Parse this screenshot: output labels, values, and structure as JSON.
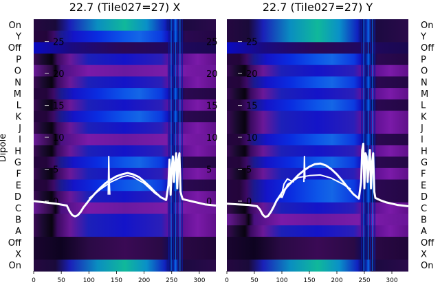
{
  "chart_data": [
    {
      "type": "heatmap",
      "title": "22.7 (Tile027=27) X",
      "ylabel": "Dipole",
      "row_labels": [
        "On",
        "Y",
        "Off",
        "P",
        "O",
        "N",
        "M",
        "L",
        "K",
        "J",
        "I",
        "H",
        "G",
        "F",
        "E",
        "D",
        "C",
        "B",
        "A",
        "Off",
        "X",
        "On"
      ],
      "x_ticks": [
        0,
        50,
        100,
        150,
        200,
        250,
        300
      ],
      "xlim": [
        0,
        330
      ],
      "overlay_ticks": [
        25,
        20,
        15,
        10,
        5,
        0
      ],
      "overlay_ylim": [
        -3,
        27
      ],
      "overlay_series": [
        {
          "x": [
            0,
            20,
            40,
            60,
            65,
            70,
            75,
            80,
            85,
            90,
            100,
            110,
            120,
            130,
            140,
            150,
            160,
            170,
            180,
            190,
            200,
            210,
            220,
            230,
            240,
            244,
            246,
            248,
            250,
            252,
            254,
            256,
            258,
            260,
            262,
            264,
            266,
            268,
            270,
            280,
            290,
            300,
            310,
            320,
            330
          ],
          "y": [
            0,
            -0.2,
            -0.4,
            -0.7,
            -1.6,
            -2.2,
            -2.4,
            -2.2,
            -1.7,
            -1.0,
            0.1,
            1.1,
            2.0,
            2.8,
            3.4,
            3.9,
            4.2,
            4.4,
            4.2,
            3.8,
            3.1,
            2.3,
            1.4,
            0.6,
            0.2,
            2.5,
            6.5,
            1,
            5,
            7,
            3,
            6,
            7.5,
            2,
            6.5,
            7.5,
            1.5,
            0.8,
            0.3,
            0.1,
            -0.1,
            -0.3,
            -0.5,
            -0.6,
            -0.7
          ]
        },
        {
          "x": [
            100,
            120,
            140,
            160,
            170,
            180,
            200,
            220,
            240
          ],
          "y": [
            0.4,
            1.8,
            3.0,
            3.8,
            4.0,
            3.8,
            2.8,
            1.2,
            0.1
          ]
        },
        {
          "x": [
            135,
            136,
            137,
            138
          ],
          "y": [
            1,
            7,
            3,
            1
          ]
        }
      ]
    },
    {
      "type": "heatmap",
      "title": "22.7 (Tile027=27) Y",
      "row_labels": [
        "On",
        "Y",
        "Off",
        "P",
        "O",
        "N",
        "M",
        "L",
        "K",
        "J",
        "I",
        "H",
        "G",
        "F",
        "E",
        "D",
        "C",
        "B",
        "A",
        "Off",
        "X",
        "On"
      ],
      "x_ticks": [
        0,
        50,
        100,
        150,
        200,
        250,
        300
      ],
      "xlim": [
        0,
        330
      ],
      "overlay_ticks": [
        25,
        20,
        15,
        10,
        5,
        0
      ],
      "overlay_ylim": [
        -3,
        27
      ],
      "overlay_series": [
        {
          "x": [
            0,
            20,
            40,
            55,
            60,
            65,
            70,
            75,
            80,
            85,
            90,
            100,
            110,
            120,
            130,
            140,
            150,
            160,
            170,
            180,
            190,
            200,
            210,
            220,
            230,
            240,
            244,
            246,
            248,
            250,
            252,
            254,
            256,
            258,
            260,
            262,
            264,
            266,
            268,
            270,
            280,
            290,
            300,
            310,
            320,
            330
          ],
          "y": [
            -0.4,
            -0.5,
            -0.6,
            -0.8,
            -1.3,
            -2.1,
            -2.5,
            -2.3,
            -1.7,
            -0.9,
            0,
            1.3,
            2.3,
            3.2,
            4.1,
            4.8,
            5.4,
            5.8,
            5.9,
            5.6,
            5.0,
            4.2,
            3.2,
            2.1,
            1.1,
            0.4,
            3,
            8,
            9,
            2,
            7.5,
            7,
            3,
            6,
            8,
            2,
            6,
            7.5,
            1.5,
            0.5,
            0.1,
            -0.2,
            -0.4,
            -0.6,
            -0.7,
            -0.8
          ]
        },
        {
          "x": [
            100,
            110,
            130,
            150,
            170,
            190,
            210,
            225
          ],
          "y": [
            0.5,
            2.6,
            3.7,
            4.0,
            4.1,
            3.6,
            2.7,
            1.9
          ]
        },
        {
          "x": [
            98,
            104,
            110,
            116,
            122
          ],
          "y": [
            0.5,
            2.7,
            3.5,
            3.2,
            3.0
          ]
        },
        {
          "x": [
            140,
            141,
            142
          ],
          "y": [
            3,
            7,
            3.5
          ]
        }
      ]
    }
  ]
}
